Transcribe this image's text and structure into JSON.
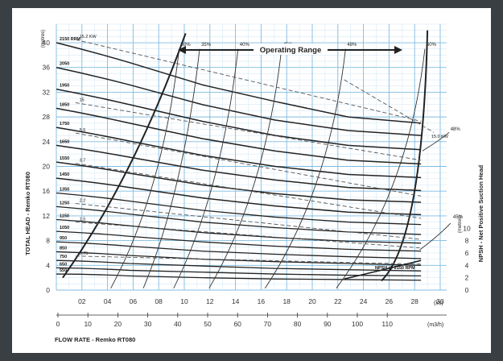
{
  "chart_data": {
    "type": "line",
    "title": "",
    "operating_range_label": "Operating Range",
    "ylabel_left": "TOTAL HEAD - Remko RT080",
    "ylabel_right": "NPSH - Net Positive Suction Head",
    "xlabel_bottom": "FLOW RATE - Remko RT080",
    "y_unit": "(metres)",
    "y_unit_right": "(metres)",
    "x_unit_ls": "(l/s)",
    "x_unit_m3h": "(m3/h)",
    "ylim": [
      0,
      43
    ],
    "xlim": [
      0,
      33
    ],
    "grid": true,
    "y_ticks": [
      0,
      4,
      8,
      12,
      16,
      20,
      24,
      28,
      32,
      36,
      40
    ],
    "y_ticks_right": [
      0,
      2,
      4,
      6,
      8,
      10
    ],
    "x_ticks_ls": [
      {
        "v": 2,
        "label": "02"
      },
      {
        "v": 4,
        "label": "04"
      },
      {
        "v": 6,
        "label": "06"
      },
      {
        "v": 8,
        "label": "08"
      },
      {
        "v": 10,
        "label": "10"
      },
      {
        "v": 12,
        "label": "12"
      },
      {
        "v": 14,
        "label": "14"
      },
      {
        "v": 16,
        "label": "16"
      },
      {
        "v": 18,
        "label": "18"
      },
      {
        "v": 20,
        "label": "20"
      },
      {
        "v": 22,
        "label": "22"
      },
      {
        "v": 24,
        "label": "24"
      },
      {
        "v": 26,
        "label": "26"
      },
      {
        "v": 28,
        "label": "28"
      },
      {
        "v": 30,
        "label": "30"
      }
    ],
    "x_ticks_m3h": [
      "0",
      "10",
      "20",
      "30",
      "40",
      "50",
      "60",
      "70",
      "80",
      "90",
      "100",
      "110"
    ],
    "head_curves": [
      {
        "name": "2150 RPM",
        "head": [
          40,
          36.8,
          33.2,
          30.5,
          28,
          27
        ]
      },
      {
        "name": "2050",
        "head": [
          36,
          33.2,
          30,
          27.5,
          25.8,
          25
        ]
      },
      {
        "name": "1950",
        "head": [
          32.5,
          30,
          27.3,
          25,
          23.4,
          22.7
        ]
      },
      {
        "name": "1850",
        "head": [
          29.4,
          27,
          24.5,
          22.5,
          21,
          20.4
        ]
      },
      {
        "name": "1750",
        "head": [
          26.3,
          24.1,
          21.8,
          20,
          18.7,
          18.2
        ]
      },
      {
        "name": "1650",
        "head": [
          23.4,
          21.5,
          19.4,
          17.8,
          16.6,
          16.1
        ]
      },
      {
        "name": "1550",
        "head": [
          20.7,
          18.9,
          17,
          15.6,
          14.6,
          14.2
        ]
      },
      {
        "name": "1450",
        "head": [
          18.1,
          16.6,
          14.9,
          13.6,
          12.6,
          12.2
        ]
      },
      {
        "name": "1350",
        "head": [
          15.7,
          14.4,
          12.9,
          11.8,
          11,
          10.6
        ]
      },
      {
        "name": "1250",
        "head": [
          13.5,
          12.3,
          11,
          10.1,
          9.4,
          9
        ]
      },
      {
        "name": "1150",
        "head": [
          11.4,
          10.4,
          9.3,
          8.5,
          7.9,
          7.6
        ]
      },
      {
        "name": "1050",
        "head": [
          9.5,
          8.7,
          7.8,
          7.1,
          6.6,
          6.3
        ]
      },
      {
        "name": "950",
        "head": [
          7.8,
          7.1,
          6.3,
          5.8,
          5.4,
          5.1
        ]
      },
      {
        "name": "850",
        "head": [
          6.2,
          5.6,
          5,
          4.6,
          4.3,
          4
        ]
      },
      {
        "name": "750",
        "head": [
          4.8,
          4.3,
          3.9,
          3.5,
          3.3,
          3.1
        ]
      },
      {
        "name": "650",
        "head": [
          3.6,
          3.2,
          2.9,
          2.6,
          2.4,
          2.3
        ]
      },
      {
        "name": "550",
        "head": [
          2.6,
          2.3,
          2,
          1.8,
          1.7,
          1.6
        ]
      }
    ],
    "head_curve_flows": [
      0,
      6,
      12,
      18,
      24,
      30
    ],
    "rpm_label_display": [
      "2150 RPM",
      "2050",
      "1950",
      "1850",
      "1750",
      "1650",
      "1550",
      "1450",
      "1350",
      "1250",
      "1150",
      "1050",
      "950",
      "850",
      "750",
      "650",
      "550"
    ],
    "efficiency_labels": [
      "30%",
      "35%",
      "40%",
      "45%",
      "48%",
      "50%",
      "48%",
      "45%"
    ],
    "power_labels": [
      "15.2 KW",
      "15",
      "5.5",
      "3.7",
      "2.2",
      "1.5",
      "0.75",
      "15.0 KW"
    ],
    "npsh_label": "NPSH @ 2150 RPM"
  }
}
